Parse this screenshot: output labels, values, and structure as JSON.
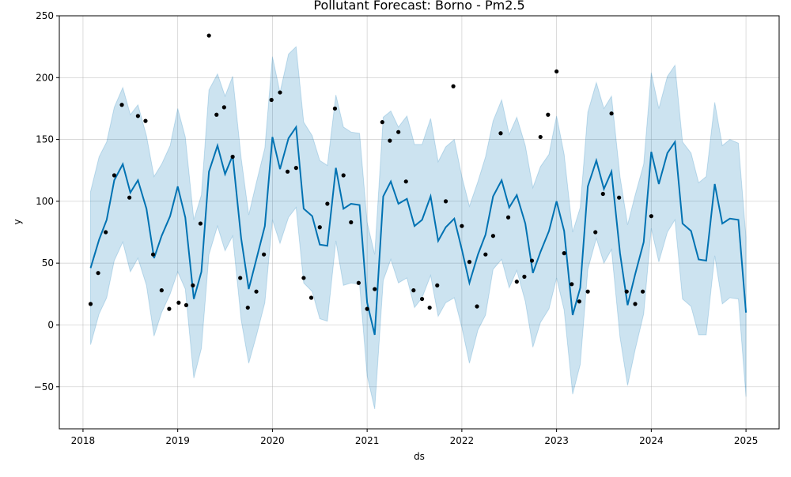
{
  "chart_data": {
    "type": "line",
    "title": "Pollutant Forecast: Borno - Pm2.5",
    "xlabel": "ds",
    "ylabel": "y",
    "xlim": [
      2017.75,
      2025.35
    ],
    "ylim": [
      -84,
      250
    ],
    "x_ticks": [
      2018,
      2019,
      2020,
      2021,
      2022,
      2023,
      2024,
      2025
    ],
    "x_tick_labels": [
      "2018",
      "2019",
      "2020",
      "2021",
      "2022",
      "2023",
      "2024",
      "2025"
    ],
    "y_ticks": [
      -50,
      0,
      50,
      100,
      150,
      200,
      250
    ],
    "y_tick_labels": [
      "−50",
      "0",
      "50",
      "100",
      "150",
      "200",
      "250"
    ],
    "grid": true,
    "colors": {
      "forecast": "#0072B2",
      "observed": "#000000"
    },
    "series": [
      {
        "name": "yhat",
        "kind": "line",
        "x": [
          2018.08,
          2018.17,
          2018.25,
          2018.33,
          2018.42,
          2018.5,
          2018.58,
          2018.67,
          2018.75,
          2018.83,
          2018.92,
          2019.0,
          2019.08,
          2019.17,
          2019.25,
          2019.33,
          2019.42,
          2019.5,
          2019.58,
          2019.67,
          2019.75,
          2019.83,
          2019.92,
          2020.0,
          2020.08,
          2020.17,
          2020.25,
          2020.33,
          2020.42,
          2020.5,
          2020.58,
          2020.67,
          2020.75,
          2020.83,
          2020.92,
          2021.0,
          2021.08,
          2021.17,
          2021.25,
          2021.33,
          2021.42,
          2021.5,
          2021.58,
          2021.67,
          2021.75,
          2021.83,
          2021.92,
          2022.0,
          2022.08,
          2022.17,
          2022.25,
          2022.33,
          2022.42,
          2022.5,
          2022.58,
          2022.67,
          2022.75,
          2022.83,
          2022.92,
          2023.0,
          2023.08,
          2023.17,
          2023.25,
          2023.33,
          2023.42,
          2023.5,
          2023.58,
          2023.67,
          2023.75,
          2023.83,
          2023.92,
          2024.0,
          2024.08,
          2024.17,
          2024.25,
          2024.33,
          2024.42,
          2024.5,
          2024.58,
          2024.67,
          2024.75,
          2024.83,
          2024.92,
          2025.0
        ],
        "y": [
          46,
          69,
          85,
          117,
          130,
          107,
          117,
          94,
          54,
          72,
          88,
          112,
          87,
          21,
          43,
          124,
          145,
          122,
          137,
          70,
          29,
          53,
          80,
          152,
          126,
          151,
          160,
          94,
          88,
          65,
          64,
          127,
          94,
          98,
          97,
          18,
          -8,
          104,
          116,
          98,
          102,
          80,
          85,
          104,
          68,
          79,
          86,
          61,
          34,
          57,
          73,
          104,
          117,
          95,
          105,
          82,
          42,
          59,
          76,
          100,
          76,
          8,
          30,
          112,
          133,
          110,
          124,
          58,
          16,
          41,
          67,
          140,
          114,
          139,
          148,
          82,
          76,
          53,
          52,
          114,
          82,
          86,
          85,
          10
        ]
      },
      {
        "name": "yhat_lower",
        "kind": "band-lower",
        "y": [
          -16,
          9,
          22,
          52,
          67,
          43,
          54,
          32,
          -9,
          10,
          25,
          43,
          29,
          -43,
          -19,
          57,
          80,
          60,
          72,
          4,
          -31,
          -9,
          18,
          85,
          66,
          87,
          95,
          34,
          27,
          5,
          3,
          68,
          32,
          34,
          33,
          -41,
          -68,
          36,
          53,
          34,
          38,
          14,
          22,
          40,
          7,
          18,
          22,
          -2,
          -31,
          -4,
          8,
          45,
          53,
          30,
          44,
          19,
          -18,
          2,
          13,
          38,
          12,
          -56,
          -32,
          45,
          70,
          50,
          61,
          -10,
          -49,
          -20,
          9,
          78,
          51,
          75,
          85,
          21,
          15,
          -8,
          -8,
          56,
          17,
          22,
          21,
          -58
        ]
      },
      {
        "name": "yhat_upper",
        "kind": "band-upper",
        "y": [
          108,
          136,
          148,
          176,
          192,
          170,
          178,
          153,
          120,
          130,
          145,
          175,
          152,
          85,
          105,
          190,
          203,
          185,
          201,
          135,
          89,
          115,
          143,
          217,
          188,
          219,
          225,
          164,
          153,
          133,
          129,
          186,
          160,
          156,
          155,
          83,
          57,
          168,
          173,
          160,
          169,
          146,
          146,
          167,
          132,
          144,
          150,
          120,
          96,
          116,
          136,
          165,
          182,
          154,
          168,
          145,
          111,
          128,
          138,
          169,
          138,
          75,
          95,
          172,
          196,
          175,
          185,
          120,
          81,
          105,
          130,
          204,
          175,
          201,
          210,
          148,
          139,
          115,
          120,
          180,
          145,
          150,
          147,
          71
        ]
      },
      {
        "name": "y",
        "kind": "scatter",
        "x": [
          2018.08,
          2018.16,
          2018.24,
          2018.33,
          2018.41,
          2018.49,
          2018.58,
          2018.66,
          2018.74,
          2018.83,
          2018.91,
          2019.01,
          2019.09,
          2019.16,
          2019.24,
          2019.33,
          2019.41,
          2019.49,
          2019.58,
          2019.66,
          2019.74,
          2019.83,
          2019.91,
          2019.99,
          2020.08,
          2020.16,
          2020.25,
          2020.33,
          2020.41,
          2020.5,
          2020.58,
          2020.66,
          2020.75,
          2020.83,
          2020.91,
          2021.0,
          2021.08,
          2021.16,
          2021.24,
          2021.33,
          2021.41,
          2021.49,
          2021.58,
          2021.66,
          2021.74,
          2021.83,
          2021.91,
          2022.0,
          2022.08,
          2022.16,
          2022.25,
          2022.33,
          2022.41,
          2022.49,
          2022.58,
          2022.66,
          2022.74,
          2022.83,
          2022.91,
          2023.0,
          2023.08,
          2023.16,
          2023.24,
          2023.33,
          2023.41,
          2023.49,
          2023.58,
          2023.66,
          2023.74,
          2023.83,
          2023.91,
          2024.0
        ],
        "y": [
          17,
          42,
          75,
          121,
          178,
          103,
          169,
          165,
          57,
          28,
          13,
          18,
          16,
          32,
          82,
          234,
          170,
          176,
          136,
          38,
          14,
          27,
          57,
          182,
          188,
          124,
          127,
          38,
          22,
          79,
          98,
          175,
          121,
          83,
          34,
          13,
          29,
          164,
          149,
          156,
          116,
          28,
          21,
          14,
          32,
          100,
          193,
          80,
          51,
          15,
          57,
          72,
          155,
          87,
          35,
          39,
          52,
          152,
          170,
          205,
          58,
          33,
          19,
          27,
          75,
          106,
          171,
          103,
          27,
          17,
          27,
          88
        ]
      }
    ]
  }
}
